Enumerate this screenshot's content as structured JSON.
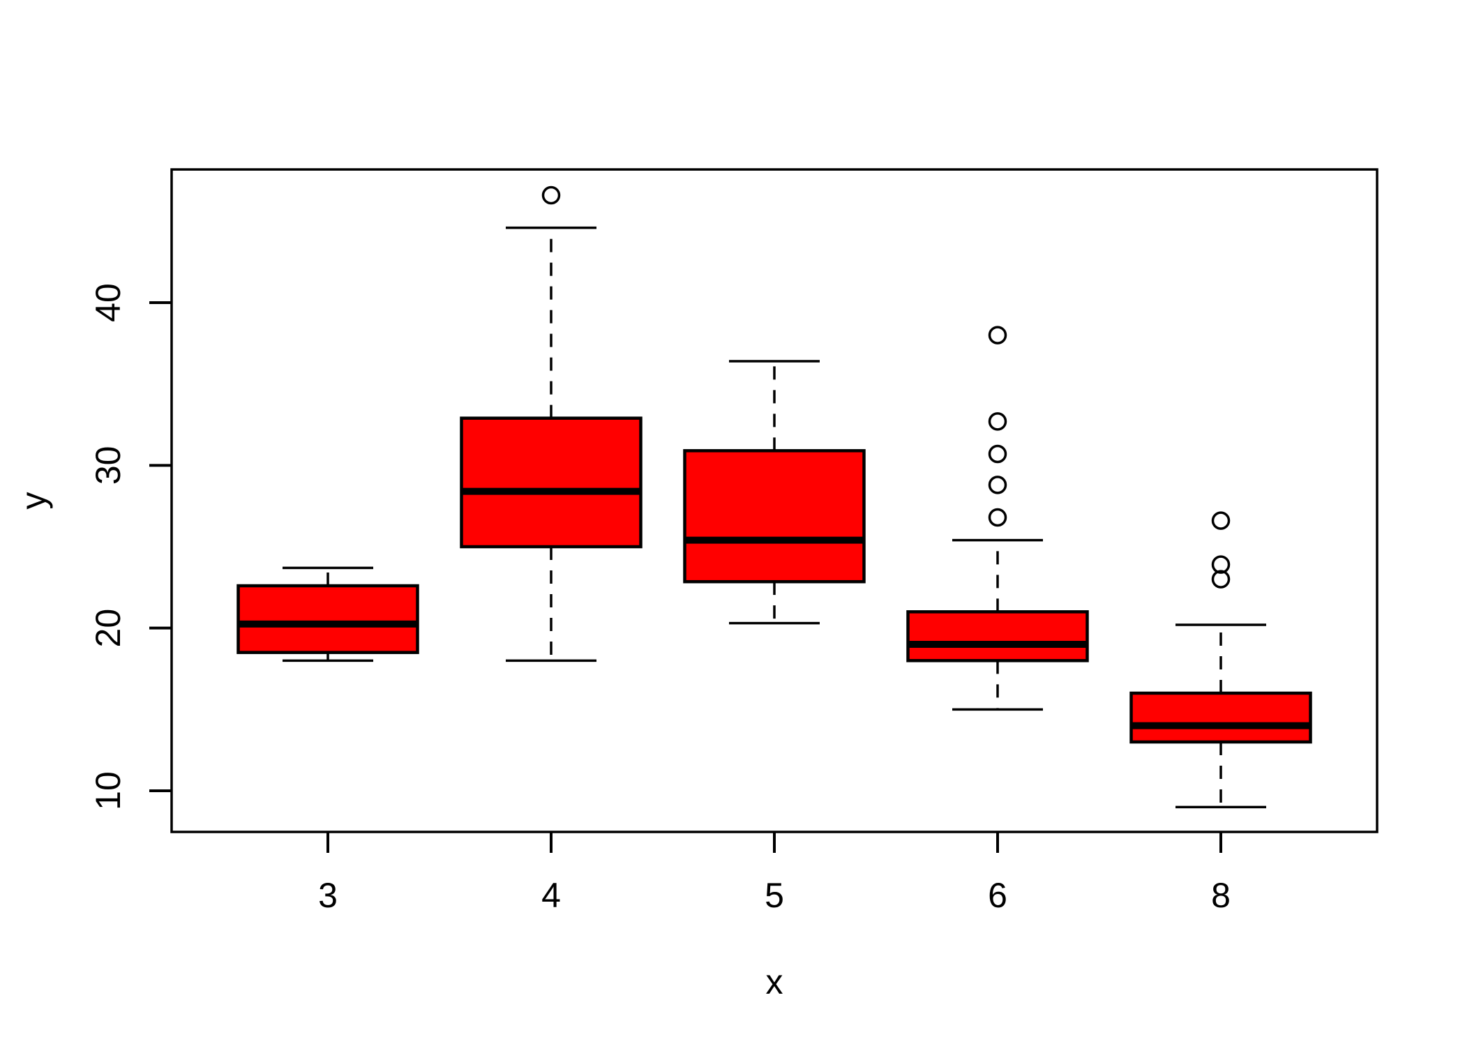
{
  "figure": {
    "background_color": "#FFFFFF",
    "line_color": "#000000",
    "title": ""
  },
  "chart_data": {
    "type": "boxplot",
    "title": "",
    "xlabel": "x",
    "ylabel": "y",
    "categories": [
      "3",
      "4",
      "5",
      "6",
      "8"
    ],
    "y_ticks": [
      10,
      20,
      30,
      40
    ],
    "ylim": [
      7.5,
      48.2
    ],
    "grid": false,
    "legend": "none",
    "box_fill_color": "#FF0000",
    "box_line_color": "#000000",
    "series": [
      {
        "category": "3",
        "whisker_low": 18.0,
        "q1": 18.5,
        "median": 20.25,
        "q3": 22.6,
        "whisker_high": 23.7,
        "outliers": []
      },
      {
        "category": "4",
        "whisker_low": 18.0,
        "q1": 25.0,
        "median": 28.4,
        "q3": 32.9,
        "whisker_high": 44.6,
        "outliers": [
          46.6
        ]
      },
      {
        "category": "5",
        "whisker_low": 20.3,
        "q1": 22.85,
        "median": 25.4,
        "q3": 30.9,
        "whisker_high": 36.4,
        "outliers": []
      },
      {
        "category": "6",
        "whisker_low": 15.0,
        "q1": 18.0,
        "median": 19.0,
        "q3": 21.0,
        "whisker_high": 25.4,
        "outliers": [
          26.8,
          28.8,
          30.7,
          32.7,
          38.0
        ]
      },
      {
        "category": "8",
        "whisker_low": 9.0,
        "q1": 13.0,
        "median": 14.0,
        "q3": 16.0,
        "whisker_high": 20.2,
        "outliers": [
          23.0,
          23.9,
          26.6
        ]
      }
    ]
  }
}
